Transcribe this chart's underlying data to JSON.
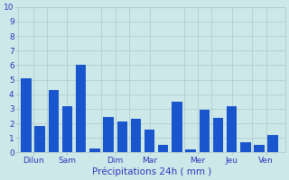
{
  "bar_data": [
    [
      0,
      5.1
    ],
    [
      1,
      1.8
    ],
    [
      2,
      4.3
    ],
    [
      3,
      3.2
    ],
    [
      4,
      6.0
    ],
    [
      5,
      0.3
    ],
    [
      6,
      2.45
    ],
    [
      7,
      2.1
    ],
    [
      8,
      2.3
    ],
    [
      9,
      1.6
    ],
    [
      10,
      0.5
    ],
    [
      11,
      3.5
    ],
    [
      12,
      0.2
    ],
    [
      13,
      2.9
    ],
    [
      14,
      2.4
    ],
    [
      15,
      3.2
    ],
    [
      16,
      0.7
    ],
    [
      17,
      0.5
    ],
    [
      18,
      1.2
    ]
  ],
  "bar_color": "#1955cc",
  "background_color": "#cce8e8",
  "grid_color": "#b0c8c8",
  "text_color": "#3333bb",
  "xlabel": "Précipitations 24h ( mm )",
  "ylim": [
    0,
    10
  ],
  "yticks": [
    0,
    1,
    2,
    3,
    4,
    5,
    6,
    7,
    8,
    9,
    10
  ],
  "xtick_positions": [
    0.5,
    3.0,
    6.5,
    9.0,
    12.5,
    15.0,
    17.5
  ],
  "xtick_labels": [
    "Dilun",
    "Sam",
    "Dim",
    "Mar",
    "Mer",
    "Jeu",
    "Ven"
  ],
  "vline_positions": [
    1.5,
    5.5,
    7.5,
    11.5,
    13.5,
    16.5
  ],
  "bar_width": 0.75
}
